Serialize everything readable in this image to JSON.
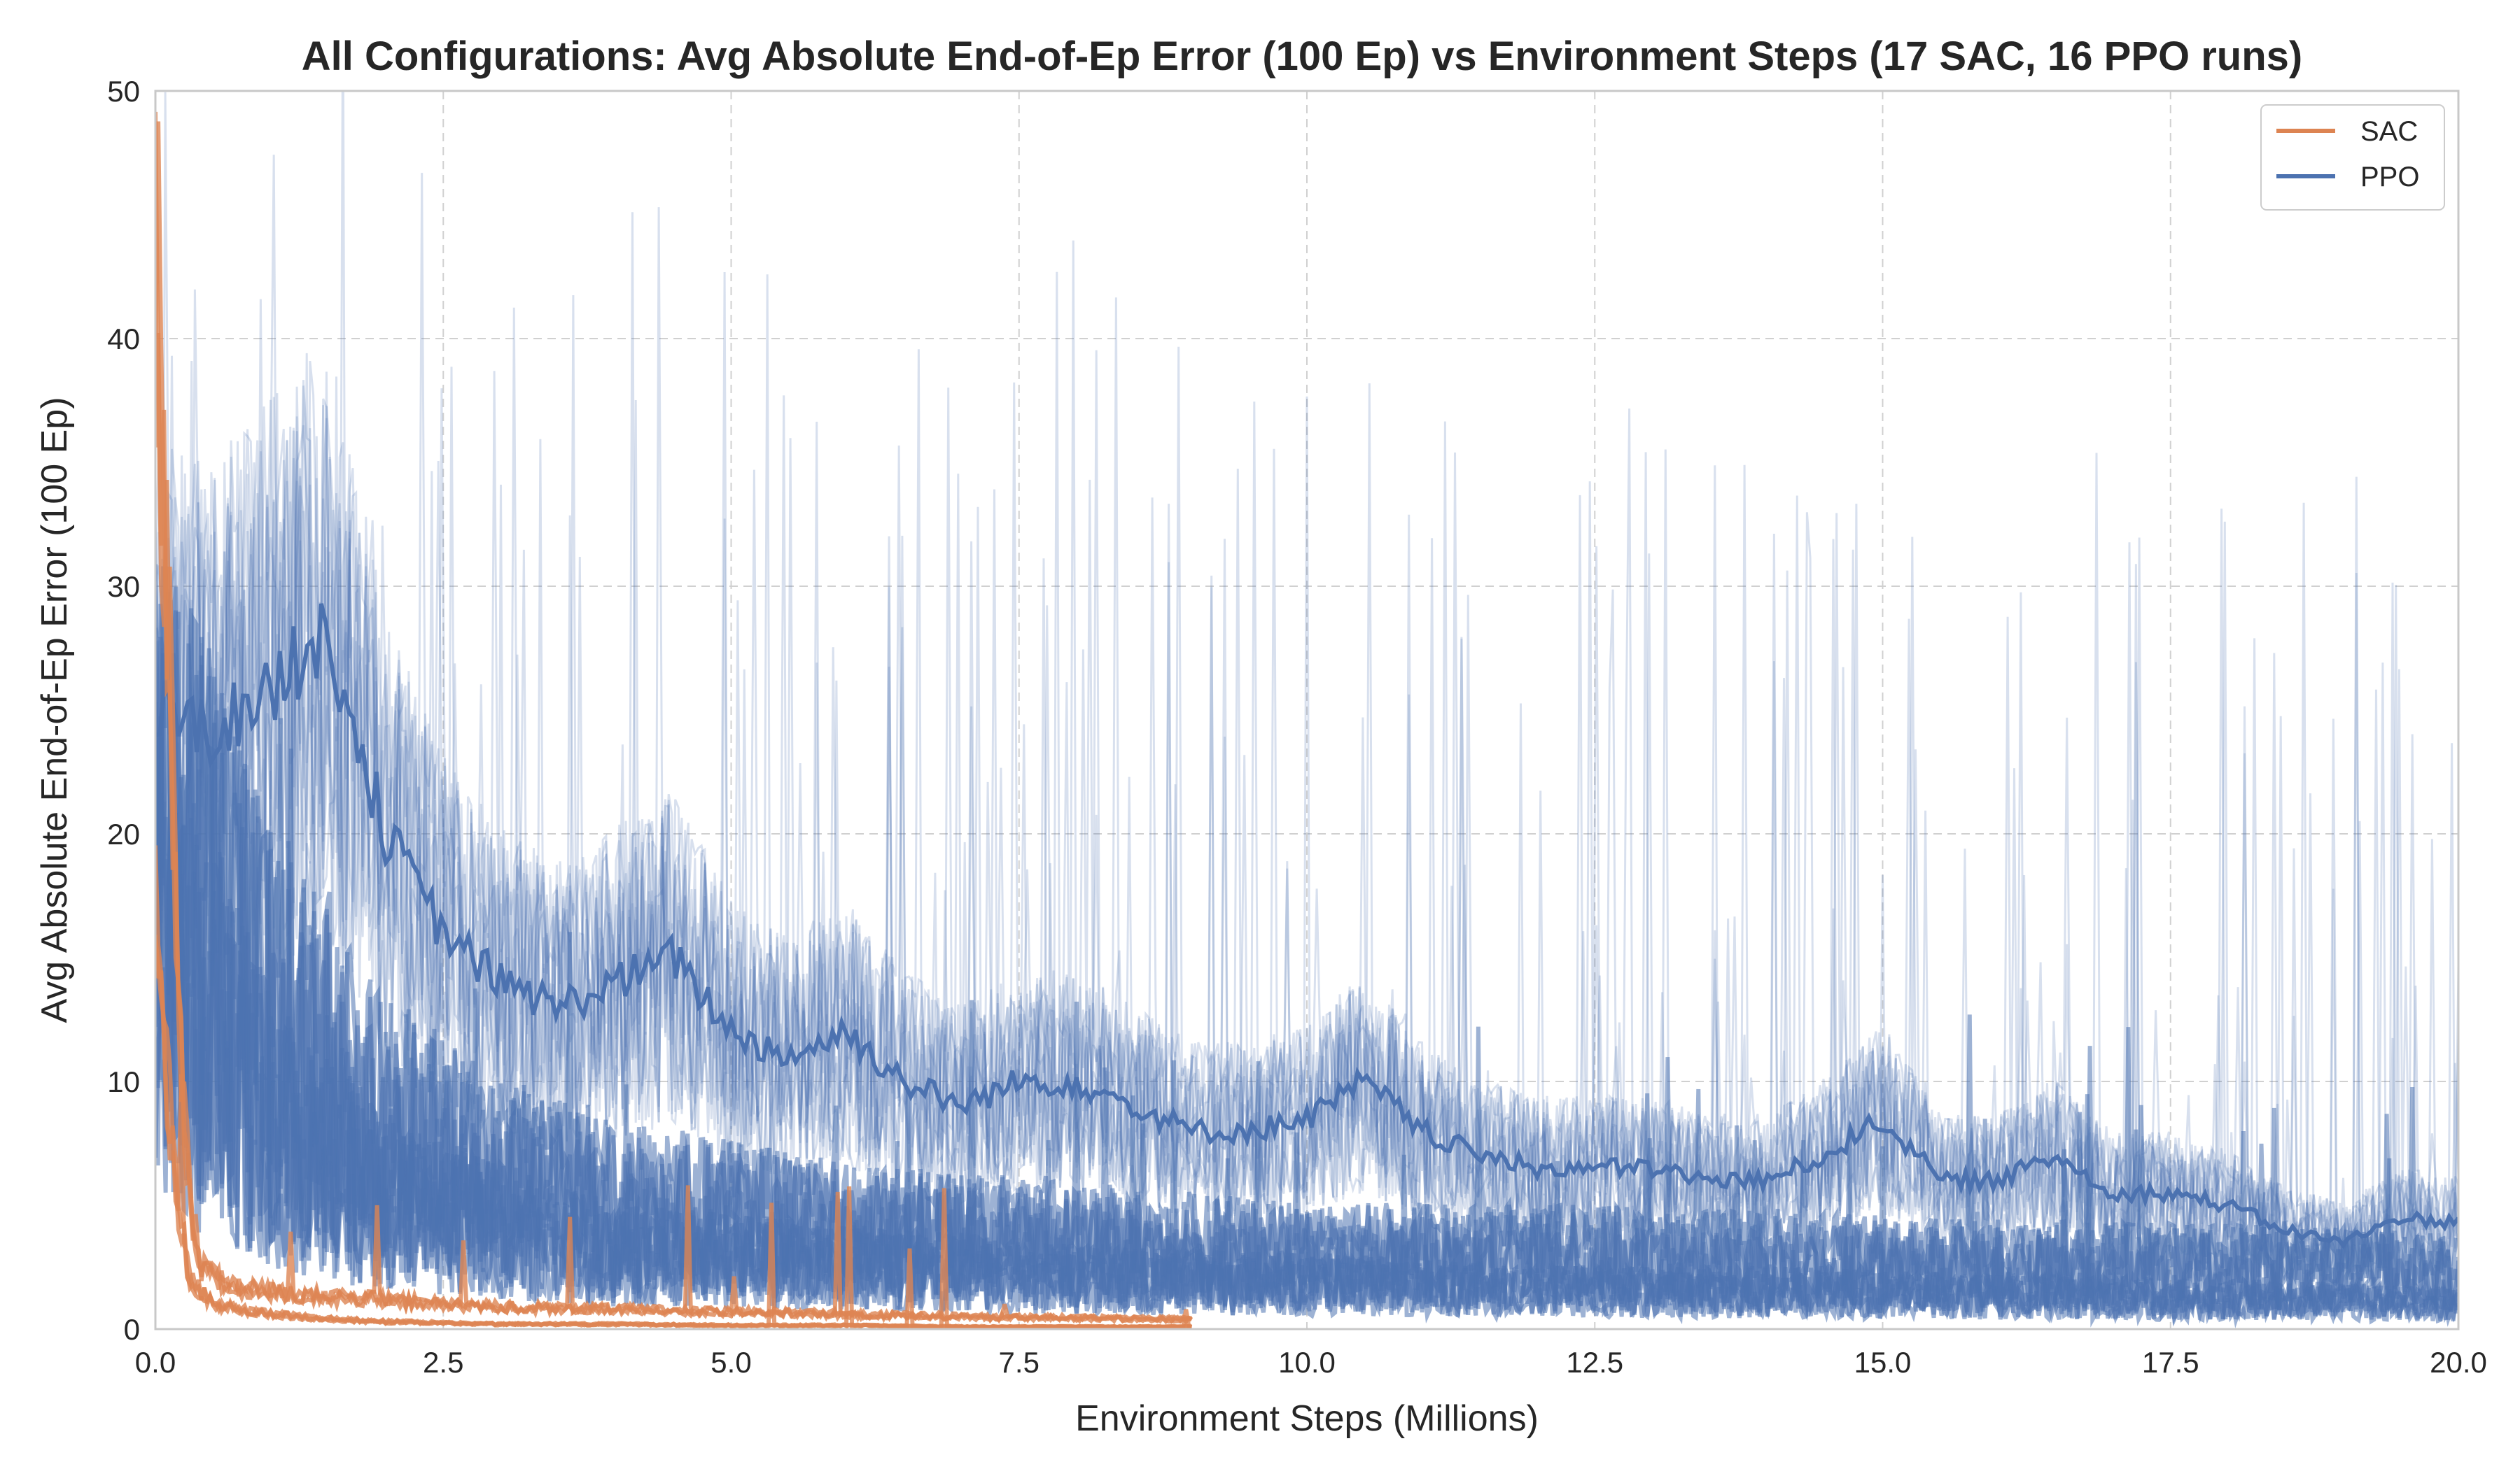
{
  "chart_data": {
    "type": "line",
    "title": "All Configurations: Avg Absolute End-of-Ep Error (100 Ep) vs Environment Steps (17 SAC, 16 PPO runs)",
    "xlabel": "Environment Steps (Millions)",
    "ylabel": "Avg Absolute End-of-Ep Error (100 Ep)",
    "xlim": [
      0,
      20
    ],
    "ylim": [
      0,
      50
    ],
    "xticks": [
      "0.0",
      "2.5",
      "5.0",
      "7.5",
      "10.0",
      "12.5",
      "15.0",
      "17.5",
      "20.0"
    ],
    "yticks": [
      "0",
      "10",
      "20",
      "30",
      "40",
      "50"
    ],
    "grid": true,
    "legend_position": "top-right",
    "series": [
      {
        "name": "SAC",
        "color": "#dd8452",
        "run_count": 17,
        "representative_runs": [
          {
            "x": [
              0.0,
              0.1,
              0.2,
              0.3,
              0.4,
              0.6,
              0.8,
              1.0,
              1.5,
              2.0,
              2.5,
              3.0,
              4.0,
              5.0,
              6.0,
              7.0,
              8.0,
              9.0
            ],
            "y": [
              45,
              30,
              12,
              5,
              2.5,
              1.8,
              1.6,
              1.5,
              1.3,
              1.2,
              1.0,
              0.9,
              0.8,
              0.7,
              0.6,
              0.5,
              0.45,
              0.4
            ]
          },
          {
            "x": [
              0.0,
              0.1,
              0.2,
              0.3,
              0.5,
              1.0,
              1.5,
              2.0,
              2.5,
              3.0,
              4.0,
              5.0,
              6.0,
              7.0,
              8.0,
              9.0
            ],
            "y": [
              20,
              10,
              5,
              2.0,
              1.0,
              0.6,
              0.4,
              0.3,
              0.25,
              0.2,
              0.2,
              0.15,
              0.15,
              0.1,
              0.1,
              0.1
            ]
          }
        ]
      },
      {
        "name": "PPO",
        "color": "#4c72b0",
        "run_count": 16,
        "representative_runs": [
          {
            "x": [
              0.0,
              0.5,
              1.0,
              1.5,
              2.0,
              2.5,
              3.0,
              3.5,
              4.0,
              4.5,
              5.0,
              5.5,
              6.0,
              6.5,
              7.0,
              7.5,
              8.0,
              8.5,
              9.0,
              9.5,
              10.0,
              10.5,
              11.0,
              11.5,
              12.0,
              12.5,
              13.0,
              13.5,
              14.0,
              14.5,
              15.0,
              15.5,
              16.0,
              16.5,
              17.0,
              17.5,
              18.0,
              18.5,
              19.0,
              19.5,
              20.0
            ],
            "y": [
              25,
              24,
              26,
              28,
              20,
              16,
              14,
              13,
              14,
              15,
              12,
              11,
              12,
              10,
              9,
              10,
              10,
              9,
              8,
              8,
              8.5,
              10,
              8,
              7,
              6.5,
              6.5,
              6.5,
              6,
              6,
              7,
              8.5,
              6,
              6,
              7,
              5.5,
              5.5,
              5,
              4,
              3.5,
              4.5,
              4.3
            ]
          },
          {
            "x": [
              0.0,
              1.0,
              2.0,
              3.0,
              4.0,
              5.0,
              6.0,
              8.0,
              10.0,
              12.0,
              14.0,
              16.0,
              18.0,
              20.0
            ],
            "y": [
              20,
              12,
              8,
              6,
              5,
              4.5,
              4,
              3.5,
              3,
              3,
              2.8,
              2.6,
              2.5,
              2.3
            ]
          },
          {
            "x": [
              0.0,
              1.0,
              2.0,
              3.0,
              4.0,
              6.0,
              8.0,
              10.0,
              12.0,
              14.0,
              16.0,
              18.0,
              20.0
            ],
            "y": [
              15,
              8,
              5,
              4,
              3,
              2.5,
              2,
              1.8,
              1.5,
              1.5,
              1.3,
              1.2,
              1.0
            ]
          }
        ]
      }
    ]
  }
}
